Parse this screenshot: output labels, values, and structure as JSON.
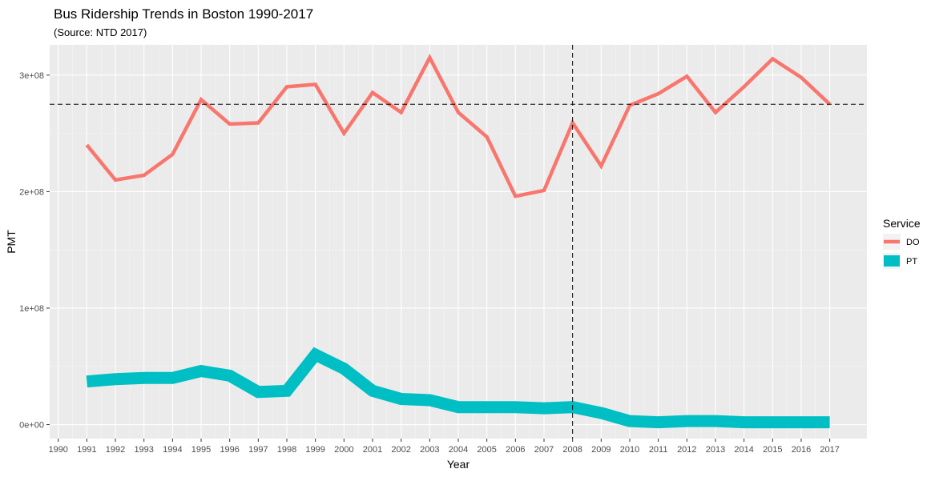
{
  "chart_data": {
    "type": "line",
    "title": "Bus Ridership Trends in Boston 1990-2017",
    "subtitle": "(Source: NTD 2017)",
    "xlabel": "Year",
    "ylabel": "PMT",
    "x_ticks": [
      "1990",
      "1991",
      "1992",
      "1993",
      "1994",
      "1995",
      "1996",
      "1997",
      "1998",
      "1999",
      "2000",
      "2001",
      "2002",
      "2003",
      "2004",
      "2005",
      "2006",
      "2007",
      "2008",
      "2009",
      "2010",
      "2011",
      "2012",
      "2013",
      "2014",
      "2015",
      "2016",
      "2017"
    ],
    "y_ticks": [
      {
        "value": 0,
        "label": "0e+00"
      },
      {
        "value": 100000000,
        "label": "1e+08"
      },
      {
        "value": 200000000,
        "label": "2e+08"
      },
      {
        "value": 300000000,
        "label": "3e+08"
      }
    ],
    "xlim": [
      1989.7,
      2018.3
    ],
    "ylim": [
      -12000000,
      326000000
    ],
    "grid": true,
    "legend": {
      "title": "Service",
      "placement": "right"
    },
    "series": [
      {
        "name": "DO",
        "color": "#F8766D",
        "width": "thin",
        "x": [
          1991,
          1992,
          1993,
          1994,
          1995,
          1996,
          1997,
          1998,
          1999,
          2000,
          2001,
          2002,
          2003,
          2004,
          2005,
          2006,
          2007,
          2008,
          2009,
          2010,
          2011,
          2012,
          2013,
          2014,
          2015,
          2016,
          2017
        ],
        "values": [
          240000000,
          210000000,
          214000000,
          232000000,
          279000000,
          258000000,
          259000000,
          290000000,
          292000000,
          250000000,
          285000000,
          268000000,
          315000000,
          268000000,
          247000000,
          196000000,
          201000000,
          259000000,
          222000000,
          274000000,
          284000000,
          299000000,
          268000000,
          290000000,
          314000000,
          298000000,
          275000000
        ]
      },
      {
        "name": "PT",
        "color": "#00BFC4",
        "width": "thick",
        "x": [
          1991,
          1992,
          1993,
          1994,
          1995,
          1996,
          1997,
          1998,
          1999,
          2000,
          2001,
          2002,
          2003,
          2004,
          2005,
          2006,
          2007,
          2008,
          2009,
          2010,
          2011,
          2012,
          2013,
          2014,
          2015,
          2016,
          2017
        ],
        "values": [
          37000000,
          39000000,
          40000000,
          40000000,
          46000000,
          42000000,
          28000000,
          29000000,
          60000000,
          48000000,
          29000000,
          22000000,
          21000000,
          15000000,
          15000000,
          15000000,
          14000000,
          15000000,
          10000000,
          3000000,
          2000000,
          3000000,
          3000000,
          2000000,
          2000000,
          2000000,
          2000000
        ]
      }
    ],
    "reference_lines": [
      {
        "orientation": "vertical",
        "x": 2008,
        "style": "dashed"
      },
      {
        "orientation": "horizontal",
        "y": 275000000,
        "style": "dashed"
      }
    ]
  }
}
